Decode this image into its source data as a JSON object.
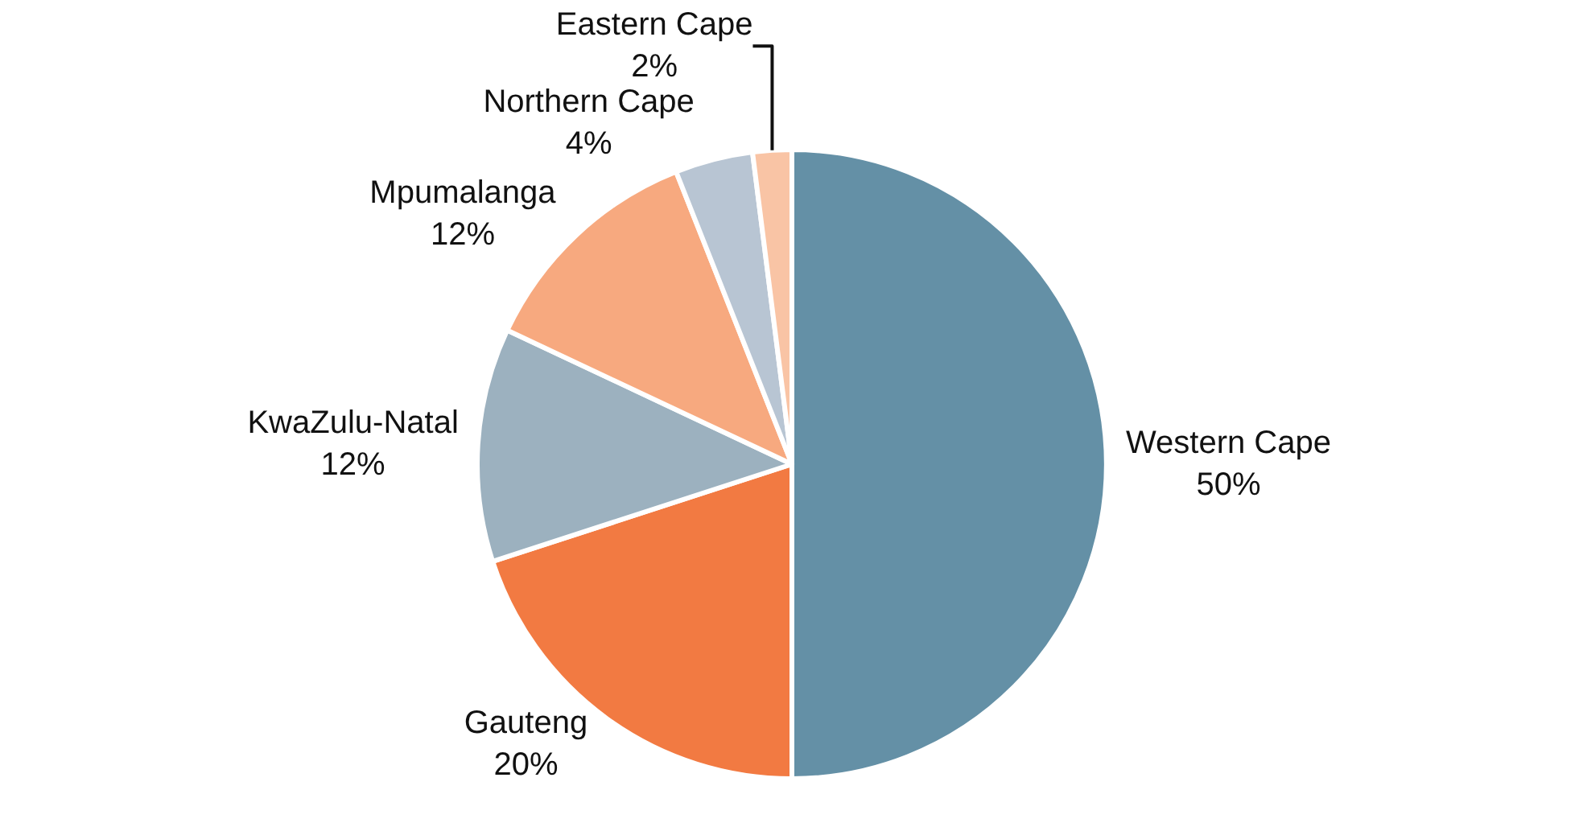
{
  "chart_data": {
    "type": "pie",
    "categories": [
      "Western Cape",
      "Gauteng",
      "KwaZulu-Natal",
      "Mpumalanga",
      "Northern Cape",
      "Eastern Cape"
    ],
    "values": [
      50,
      20,
      12,
      12,
      4,
      2
    ],
    "value_labels": [
      "50%",
      "20%",
      "12%",
      "12%",
      "4%",
      "2%"
    ],
    "colors": [
      "#6490a6",
      "#f27a42",
      "#9cb1bf",
      "#f7a97f",
      "#b8c5d3",
      "#f9c4a5"
    ],
    "legend": false
  }
}
